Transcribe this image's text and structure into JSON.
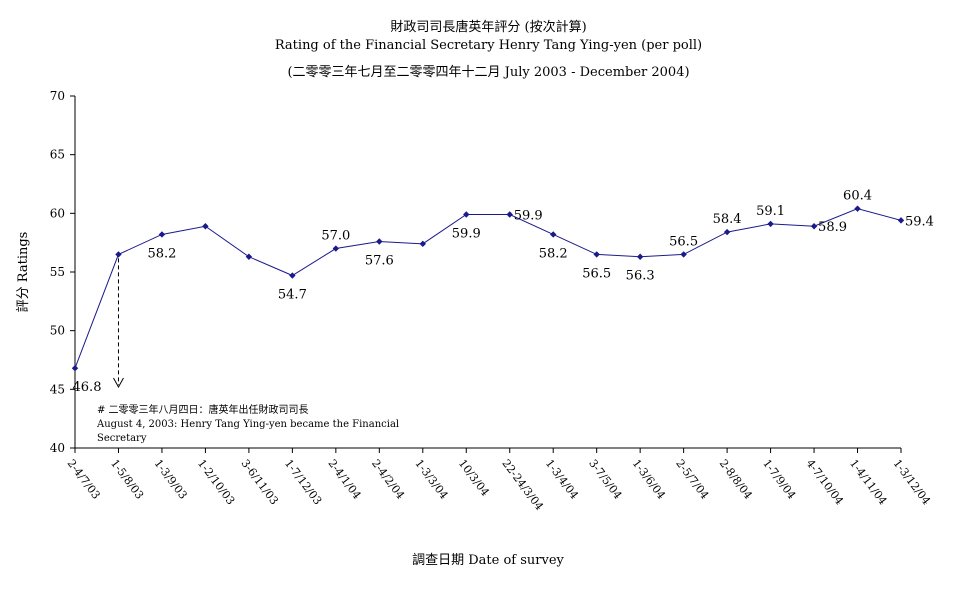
{
  "chart_data": {
    "type": "line",
    "title": "財政司司長唐英年評分 (按次計算)",
    "subtitle_1": "Rating of the Financial Secretary Henry Tang Ying-yen  (per poll)",
    "subtitle_2": "(二零零三年七月至二零零四年十二月 July 2003 - December 2004)",
    "xlabel": "調查日期 Date of survey",
    "ylabel": "評分 Ratings",
    "ylim": [
      40,
      70
    ],
    "yticks": [
      40,
      45,
      50,
      55,
      60,
      65,
      70
    ],
    "grid": false,
    "legend": "none",
    "line_color": "#1a1a8c",
    "categories": [
      "2-4/7/03",
      "1-5/8/03",
      "1-3/9/03",
      "1-2/10/03",
      "3-6/11/03",
      "1-7/12/03",
      "2-4/1/04",
      "2-4/2/04",
      "1-3/3/04",
      "10/3/04",
      "22-24/3/04",
      "1-3/4/04",
      "3-7/5/04",
      "1-3/6/04",
      "2-5/7/04",
      "2-8/8/04",
      "1-7/9/04",
      "4-7/10/04",
      "1-4/11/04",
      "1-3/12/04"
    ],
    "values": [
      46.8,
      56.5,
      58.2,
      58.9,
      56.3,
      54.7,
      57.0,
      57.6,
      57.4,
      59.9,
      59.9,
      58.2,
      56.5,
      56.3,
      56.5,
      58.4,
      59.1,
      58.9,
      60.4,
      59.4
    ],
    "data_labels": [
      "46.8",
      null,
      "58.2",
      null,
      null,
      "54.7",
      "57.0",
      "57.6",
      null,
      "59.9",
      "59.9",
      "58.2",
      "56.5",
      "56.3",
      "56.5",
      "58.4",
      "59.1",
      "58.9",
      "60.4",
      "59.4"
    ],
    "label_positions": [
      "below",
      null,
      "below",
      null,
      null,
      "below",
      "above",
      "below",
      null,
      "below",
      "right",
      "below",
      "below",
      "below",
      "above",
      "above",
      "above",
      "right",
      "above",
      "right"
    ],
    "annotation": {
      "line_1": "# 二零零三年八月四日：唐英年出任財政司司長",
      "line_2": "August 4, 2003: Henry Tang Ying-yen became the Financial",
      "line_3": "Secretary",
      "arrow_at_index": 1
    }
  }
}
